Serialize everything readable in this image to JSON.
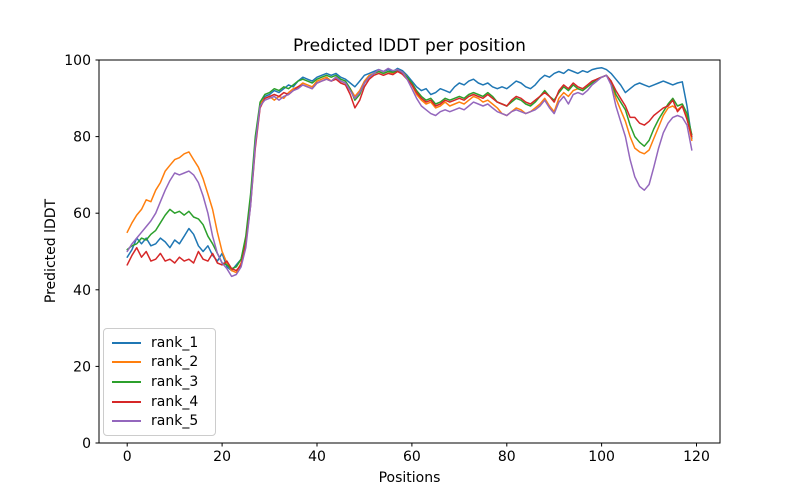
{
  "figure": {
    "title": "Predicted lDDT per position",
    "xlabel": "Positions",
    "ylabel": "Predicted lDDT",
    "background_color": "#ffffff",
    "axis_color": "#000000",
    "legend_border_color": "#cccccc"
  },
  "chart_data": {
    "type": "line",
    "title": "Predicted lDDT per position",
    "xlabel": "Positions",
    "ylabel": "Predicted lDDT",
    "xlim": [
      -5.95,
      124.95
    ],
    "ylim": [
      0,
      100
    ],
    "xticks": [
      0,
      20,
      40,
      60,
      80,
      100,
      120
    ],
    "yticks": [
      0,
      20,
      40,
      60,
      80,
      100
    ],
    "grid": false,
    "legend_position": "lower left",
    "x_start": 0,
    "x_step": 1,
    "n_points": 120,
    "series": [
      {
        "name": "rank_1",
        "color": "#1f77b4",
        "values": [
          48.5,
          50.5,
          53.5,
          52,
          53.5,
          51.5,
          52,
          53.5,
          52.5,
          51,
          53,
          52,
          54,
          56,
          54.5,
          51.5,
          50,
          51.5,
          49,
          47.5,
          49.5,
          46,
          45,
          46.5,
          48,
          53,
          63,
          78,
          88,
          90.5,
          91,
          92,
          91.5,
          92.5,
          93.5,
          93,
          94.5,
          95.5,
          95,
          94.5,
          95.5,
          96,
          96.5,
          96,
          96.5,
          95.5,
          95,
          94,
          93,
          94.5,
          96,
          96.5,
          97,
          97.5,
          97,
          97.5,
          97,
          97.8,
          97.2,
          96,
          94.5,
          93,
          92,
          92.5,
          91,
          91.5,
          92.5,
          92,
          91.5,
          93,
          94,
          93.5,
          94.5,
          95,
          94,
          93.5,
          94,
          93,
          92.5,
          93,
          92.5,
          93.5,
          94.5,
          94,
          93,
          92.5,
          93.5,
          95,
          96,
          95.5,
          96.5,
          97,
          96.5,
          97.5,
          97,
          96.5,
          97.2,
          96.8,
          97.5,
          97.8,
          98,
          97.5,
          96.5,
          95,
          93.5,
          91.5,
          92.5,
          93.5,
          94,
          93.5,
          93,
          93.5,
          94,
          94.5,
          94,
          93.5,
          94,
          94.3,
          88,
          79.5
        ]
      },
      {
        "name": "rank_2",
        "color": "#ff7f0e",
        "values": [
          55,
          57.5,
          59.5,
          61,
          63.5,
          63,
          66,
          68,
          71,
          72.5,
          74,
          74.5,
          75.5,
          76,
          74,
          72,
          69,
          65,
          61,
          55,
          50,
          47,
          45,
          44.5,
          47,
          53,
          64,
          79,
          88.5,
          90,
          90.5,
          89.5,
          90.5,
          90,
          91.5,
          92.5,
          93,
          94,
          93.5,
          93,
          94.5,
          95,
          95.5,
          94.5,
          95.5,
          94.5,
          94,
          92.5,
          90.5,
          92,
          94.5,
          96,
          96.5,
          97,
          96.5,
          97,
          96.5,
          97.5,
          96.8,
          95.5,
          93.5,
          91,
          89.5,
          88.5,
          89,
          87.5,
          88,
          89,
          88,
          88.5,
          89,
          88.5,
          89.5,
          90.5,
          90,
          89,
          89.5,
          88.5,
          87.5,
          86,
          85.5,
          86.5,
          87.5,
          87,
          86,
          86.5,
          87.5,
          88.5,
          90,
          88,
          86.5,
          90,
          91.5,
          90.5,
          92,
          92.5,
          92,
          93,
          94,
          95,
          95.5,
          96,
          94,
          90,
          87,
          84,
          80,
          77,
          76,
          75.5,
          76.5,
          79.5,
          82.5,
          85.5,
          87.5,
          88,
          87,
          88,
          85,
          79
        ]
      },
      {
        "name": "rank_3",
        "color": "#2ca02c",
        "values": [
          50.5,
          51.5,
          52,
          53.5,
          53,
          54.5,
          55.5,
          57.5,
          59.5,
          61,
          60,
          60.5,
          59.5,
          60.5,
          59,
          58.5,
          57,
          54,
          52,
          49.5,
          47,
          46.5,
          45.5,
          46,
          48,
          54,
          65,
          80,
          89,
          91,
          91.5,
          92.5,
          92,
          93,
          92.5,
          93.5,
          94.5,
          95,
          94.5,
          94,
          95,
          95.5,
          96,
          95.5,
          96,
          95,
          94.5,
          92.5,
          89.5,
          91,
          94,
          95.5,
          96.5,
          97,
          96.5,
          97,
          96.8,
          97.2,
          96.5,
          95.5,
          94,
          92,
          90.5,
          89.5,
          90,
          88.5,
          89,
          90,
          89.5,
          90,
          90.5,
          90,
          91,
          91.5,
          91,
          90.5,
          91.5,
          90.5,
          89,
          88.5,
          88,
          89,
          90,
          89.5,
          88.5,
          88,
          89,
          90.5,
          92,
          90.5,
          89.5,
          91.5,
          93,
          92,
          93.5,
          92.5,
          92,
          93,
          94,
          95,
          95.5,
          96,
          94.5,
          91,
          89,
          87,
          83,
          80,
          78.5,
          77.5,
          79,
          82,
          84.5,
          86.5,
          88.5,
          90,
          88,
          88.5,
          86,
          80.5
        ]
      },
      {
        "name": "rank_4",
        "color": "#d62728",
        "values": [
          46.5,
          49,
          51,
          48.5,
          50,
          47.5,
          48,
          49.5,
          47.5,
          48,
          47,
          48.5,
          47.5,
          48,
          47,
          50,
          48,
          47.5,
          49.5,
          47,
          46.5,
          47.5,
          45.5,
          45,
          46.5,
          52,
          62,
          77,
          87.5,
          90,
          90.5,
          91,
          90.5,
          91.5,
          91,
          92,
          93,
          93.5,
          93,
          92.5,
          94,
          94.5,
          95,
          94.5,
          95,
          94,
          93.5,
          91,
          87.5,
          89.5,
          93,
          95,
          96,
          96.5,
          96,
          96.5,
          96.2,
          97,
          96.3,
          95,
          93.5,
          91.5,
          90,
          89,
          89.5,
          88,
          88.5,
          89.5,
          89,
          89.5,
          90,
          89.5,
          90.5,
          91,
          90.5,
          90,
          91,
          90,
          89,
          88.5,
          88,
          89.5,
          90.5,
          90,
          89,
          88.5,
          89.5,
          90.5,
          91.5,
          90.5,
          89,
          92,
          93.5,
          92.5,
          94,
          93,
          92.5,
          93.5,
          94.5,
          95,
          95.5,
          96,
          94.5,
          92,
          90,
          88,
          85,
          85,
          83.5,
          83,
          84,
          85.5,
          86.5,
          87.5,
          88,
          89.5,
          86.5,
          88,
          84.5,
          80
        ]
      },
      {
        "name": "rank_5",
        "color": "#9467bd",
        "values": [
          50,
          52,
          53.5,
          55,
          56.5,
          58,
          60,
          63,
          66,
          68.5,
          70.5,
          70,
          70.5,
          71,
          70,
          68,
          64.5,
          60,
          54,
          49.5,
          47,
          45.5,
          43.5,
          44,
          46,
          51,
          62,
          78,
          88,
          89.5,
          90,
          90.5,
          89.5,
          90.5,
          91,
          92,
          92.5,
          93.5,
          93,
          92.5,
          94,
          94.5,
          95,
          94.5,
          95.5,
          94.5,
          94,
          92,
          90,
          91.5,
          94,
          95.5,
          96.5,
          97.5,
          97,
          97.8,
          97.2,
          97.5,
          96.8,
          95,
          92.5,
          90,
          88,
          87,
          86,
          85.5,
          86.5,
          87,
          86.5,
          87,
          87.5,
          87,
          88,
          89,
          88.5,
          88,
          88.5,
          87.5,
          86.5,
          86,
          85.5,
          86.5,
          87,
          86.5,
          86,
          86.5,
          87,
          88,
          89.5,
          87.5,
          86,
          89,
          90.5,
          88.5,
          91,
          91.5,
          91,
          92,
          93.5,
          94.5,
          95.5,
          96,
          93.5,
          88,
          84,
          80,
          74,
          69.5,
          67,
          66,
          67.5,
          72,
          77,
          81,
          83.5,
          85,
          85.5,
          85,
          83,
          76.5
        ]
      }
    ]
  }
}
